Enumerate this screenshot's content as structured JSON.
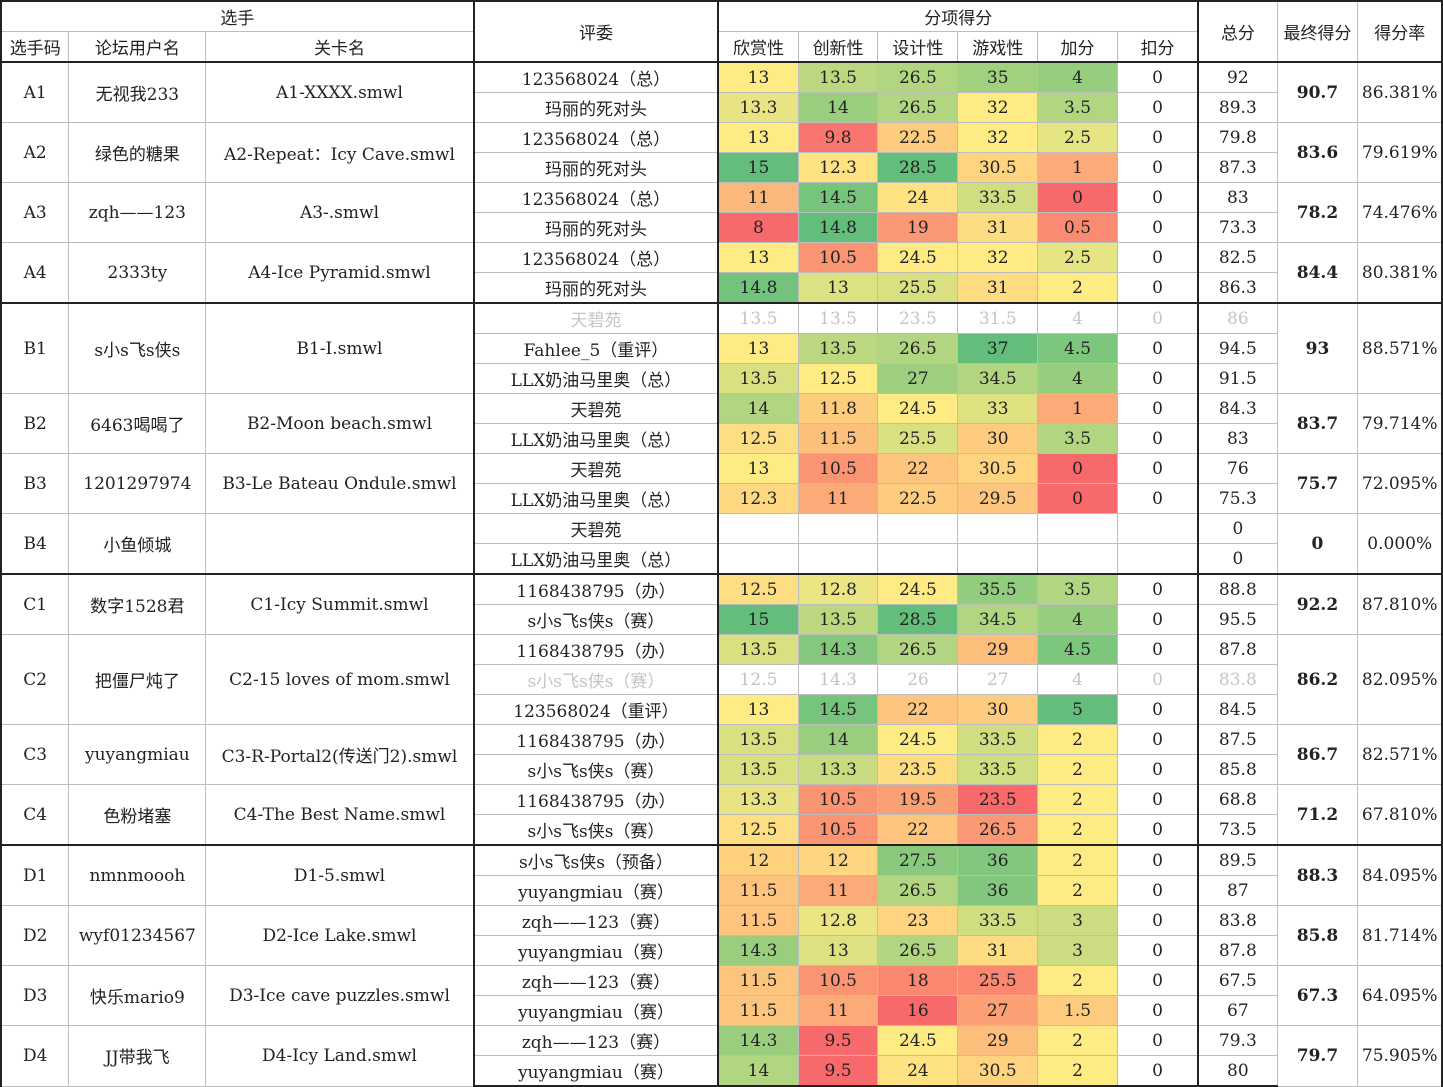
{
  "headers": {
    "player_group": "选手",
    "player_code": "选手码",
    "forum_user": "论坛用户名",
    "level_name": "关卡名",
    "judge": "评委",
    "sub_scores": "分项得分",
    "appreciation": "欣赏性",
    "innovation": "创新性",
    "design": "设计性",
    "gameplay": "游戏性",
    "bonus": "加分",
    "deduction": "扣分",
    "total": "总分",
    "final": "最终得分",
    "rate": "得分率"
  },
  "colors": {
    "scale_low": "#f8696b",
    "scale_mid": "#ffeb84",
    "scale_high": "#63be7b",
    "faded_text": "#c4c4c4"
  },
  "entries": [
    {
      "code": "A1",
      "user": "无视我233",
      "level": "A1-XXXX.smwl",
      "final": "90.7",
      "rate": "86.381%",
      "judges": [
        {
          "name": "123568024（总）",
          "s": [
            "13",
            "13.5",
            "26.5",
            "35",
            "4",
            "0",
            "92"
          ]
        },
        {
          "name": "玛丽的死对头",
          "s": [
            "13.3",
            "14",
            "26.5",
            "32",
            "3.5",
            "0",
            "89.3"
          ]
        }
      ]
    },
    {
      "code": "A2",
      "user": "绿色的糖果",
      "level": "A2-Repeat：Icy Cave.smwl",
      "final": "83.6",
      "rate": "79.619%",
      "judges": [
        {
          "name": "123568024（总）",
          "s": [
            "13",
            "9.8",
            "22.5",
            "32",
            "2.5",
            "0",
            "79.8"
          ]
        },
        {
          "name": "玛丽的死对头",
          "s": [
            "15",
            "12.3",
            "28.5",
            "30.5",
            "1",
            "0",
            "87.3"
          ]
        }
      ]
    },
    {
      "code": "A3",
      "user": "zqh——123",
      "level": "A3-.smwl",
      "final": "78.2",
      "rate": "74.476%",
      "judges": [
        {
          "name": "123568024（总）",
          "s": [
            "11",
            "14.5",
            "24",
            "33.5",
            "0",
            "0",
            "83"
          ]
        },
        {
          "name": "玛丽的死对头",
          "s": [
            "8",
            "14.8",
            "19",
            "31",
            "0.5",
            "0",
            "73.3"
          ]
        }
      ]
    },
    {
      "code": "A4",
      "user": "2333ty",
      "level": "A4-Ice Pyramid.smwl",
      "final": "84.4",
      "rate": "80.381%",
      "judges": [
        {
          "name": "123568024（总）",
          "s": [
            "13",
            "10.5",
            "24.5",
            "32",
            "2.5",
            "0",
            "82.5"
          ]
        },
        {
          "name": "玛丽的死对头",
          "s": [
            "14.8",
            "13",
            "25.5",
            "31",
            "2",
            "0",
            "86.3"
          ]
        }
      ]
    },
    {
      "code": "B1",
      "user": "s小s飞s侠s",
      "level": "B1-I.smwl",
      "final": "93",
      "rate": "88.571%",
      "judges": [
        {
          "name": "天碧苑",
          "faded": true,
          "s": [
            "13.5",
            "13.5",
            "23.5",
            "31.5",
            "4",
            "0",
            "86"
          ]
        },
        {
          "name": "Fahlee_5（重评）",
          "s": [
            "13",
            "13.5",
            "26.5",
            "37",
            "4.5",
            "0",
            "94.5"
          ]
        },
        {
          "name": "LLX奶油马里奥（总）",
          "s": [
            "13.5",
            "12.5",
            "27",
            "34.5",
            "4",
            "0",
            "91.5"
          ]
        }
      ]
    },
    {
      "code": "B2",
      "user": "6463喝喝了",
      "level": "B2-Moon beach.smwl",
      "final": "83.7",
      "rate": "79.714%",
      "judges": [
        {
          "name": "天碧苑",
          "s": [
            "14",
            "11.8",
            "24.5",
            "33",
            "1",
            "0",
            "84.3"
          ]
        },
        {
          "name": "LLX奶油马里奥（总）",
          "s": [
            "12.5",
            "11.5",
            "25.5",
            "30",
            "3.5",
            "0",
            "83"
          ]
        }
      ]
    },
    {
      "code": "B3",
      "user": "1201297974",
      "level": "B3-Le Bateau Ondule.smwl",
      "final": "75.7",
      "rate": "72.095%",
      "judges": [
        {
          "name": "天碧苑",
          "s": [
            "13",
            "10.5",
            "22",
            "30.5",
            "0",
            "0",
            "76"
          ]
        },
        {
          "name": "LLX奶油马里奥（总）",
          "s": [
            "12.3",
            "11",
            "22.5",
            "29.5",
            "0",
            "0",
            "75.3"
          ]
        }
      ]
    },
    {
      "code": "B4",
      "user": "小鱼倾城",
      "level": "",
      "final": "0",
      "rate": "0.000%",
      "judges": [
        {
          "name": "天碧苑",
          "s": [
            "",
            "",
            "",
            "",
            "",
            "",
            "0"
          ]
        },
        {
          "name": "LLX奶油马里奥（总）",
          "s": [
            "",
            "",
            "",
            "",
            "",
            "",
            "0"
          ]
        }
      ]
    },
    {
      "code": "C1",
      "user": "数字1528君",
      "level": "C1-Icy Summit.smwl",
      "final": "92.2",
      "rate": "87.810%",
      "judges": [
        {
          "name": "1168438795（办）",
          "s": [
            "12.5",
            "12.8",
            "24.5",
            "35.5",
            "3.5",
            "0",
            "88.8"
          ]
        },
        {
          "name": "s小s飞s侠s（赛）",
          "s": [
            "15",
            "13.5",
            "28.5",
            "34.5",
            "4",
            "0",
            "95.5"
          ]
        }
      ]
    },
    {
      "code": "C2",
      "user": "把僵尸炖了",
      "level": "C2-15 loves of mom.smwl",
      "final": "86.2",
      "rate": "82.095%",
      "judges": [
        {
          "name": "1168438795（办）",
          "s": [
            "13.5",
            "14.3",
            "26.5",
            "29",
            "4.5",
            "0",
            "87.8"
          ]
        },
        {
          "name": "s小s飞s侠s（赛）",
          "faded": true,
          "s": [
            "12.5",
            "14.3",
            "26",
            "27",
            "4",
            "0",
            "83.8"
          ]
        },
        {
          "name": "123568024（重评）",
          "s": [
            "13",
            "14.5",
            "22",
            "30",
            "5",
            "0",
            "84.5"
          ]
        }
      ]
    },
    {
      "code": "C3",
      "user": "yuyangmiau",
      "level": "C3-R-Portal2(传送门2).smwl",
      "final": "86.7",
      "rate": "82.571%",
      "judges": [
        {
          "name": "1168438795（办）",
          "s": [
            "13.5",
            "14",
            "24.5",
            "33.5",
            "2",
            "0",
            "87.5"
          ]
        },
        {
          "name": "s小s飞s侠s（赛）",
          "s": [
            "13.5",
            "13.3",
            "23.5",
            "33.5",
            "2",
            "0",
            "85.8"
          ]
        }
      ]
    },
    {
      "code": "C4",
      "user": "色粉堵塞",
      "level": "C4-The Best Name.smwl",
      "final": "71.2",
      "rate": "67.810%",
      "judges": [
        {
          "name": "1168438795（办）",
          "s": [
            "13.3",
            "10.5",
            "19.5",
            "23.5",
            "2",
            "0",
            "68.8"
          ]
        },
        {
          "name": "s小s飞s侠s（赛）",
          "s": [
            "12.5",
            "10.5",
            "22",
            "26.5",
            "2",
            "0",
            "73.5"
          ]
        }
      ]
    },
    {
      "code": "D1",
      "user": "nmnmoooh",
      "level": "D1-5.smwl",
      "final": "88.3",
      "rate": "84.095%",
      "judges": [
        {
          "name": "s小s飞s侠s（预备）",
          "s": [
            "12",
            "12",
            "27.5",
            "36",
            "2",
            "0",
            "89.5"
          ]
        },
        {
          "name": "yuyangmiau（赛）",
          "s": [
            "11.5",
            "11",
            "26.5",
            "36",
            "2",
            "0",
            "87"
          ]
        }
      ]
    },
    {
      "code": "D2",
      "user": "wyf01234567",
      "level": "D2-Ice Lake.smwl",
      "final": "85.8",
      "rate": "81.714%",
      "judges": [
        {
          "name": "zqh——123（赛）",
          "s": [
            "11.5",
            "12.8",
            "23",
            "33.5",
            "3",
            "0",
            "83.8"
          ]
        },
        {
          "name": "yuyangmiau（赛）",
          "s": [
            "14.3",
            "13",
            "26.5",
            "31",
            "3",
            "0",
            "87.8"
          ]
        }
      ]
    },
    {
      "code": "D3",
      "user": "快乐mario9",
      "level": "D3-Ice cave puzzles.smwl",
      "final": "67.3",
      "rate": "64.095%",
      "judges": [
        {
          "name": "zqh——123（赛）",
          "s": [
            "11.5",
            "10.5",
            "18",
            "25.5",
            "2",
            "0",
            "67.5"
          ]
        },
        {
          "name": "yuyangmiau（赛）",
          "s": [
            "11.5",
            "11",
            "16",
            "27",
            "1.5",
            "0",
            "67"
          ]
        }
      ]
    },
    {
      "code": "D4",
      "user": "JJ带我飞",
      "level": "D4-Icy Land.smwl",
      "final": "79.7",
      "rate": "75.905%",
      "judges": [
        {
          "name": "zqh——123（赛）",
          "s": [
            "14.3",
            "9.5",
            "24.5",
            "29",
            "2",
            "0",
            "79.3"
          ]
        },
        {
          "name": "yuyangmiau（赛）",
          "s": [
            "14",
            "9.5",
            "24",
            "30.5",
            "2",
            "0",
            "80"
          ]
        }
      ]
    }
  ]
}
